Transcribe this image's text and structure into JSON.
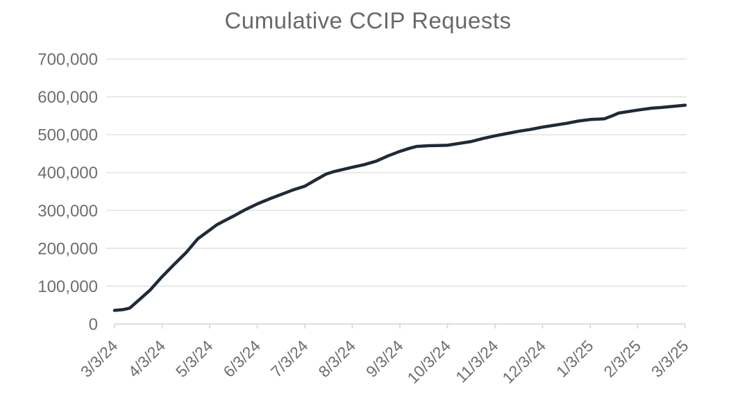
{
  "page": {
    "background": "#ffffff"
  },
  "chart_data": {
    "type": "line",
    "title": "Cumulative CCIP Requests",
    "xlabel": "",
    "ylabel": "",
    "ylim": [
      0,
      700000
    ],
    "grid": "horizontal",
    "legend": "none",
    "x_tick_labels": [
      "3/3/24",
      "4/3/24",
      "5/3/24",
      "6/3/24",
      "7/3/24",
      "8/3/24",
      "9/3/24",
      "10/3/24",
      "11/3/24",
      "12/3/24",
      "1/3/25",
      "2/3/25",
      "3/3/25"
    ],
    "y_tick_values": [
      0,
      100000,
      200000,
      300000,
      400000,
      500000,
      600000,
      700000
    ],
    "y_tick_labels": [
      "0",
      "100,000",
      "200,000",
      "300,000",
      "400,000",
      "500,000",
      "600,000",
      "700,000"
    ],
    "series": [
      {
        "name": "Cumulative CCIP Requests",
        "monthly": [
          {
            "date": "3/3/24",
            "value": 36000
          },
          {
            "date": "4/3/24",
            "value": 125000
          },
          {
            "date": "5/3/24",
            "value": 248000
          },
          {
            "date": "6/3/24",
            "value": 317000
          },
          {
            "date": "7/3/24",
            "value": 364000
          },
          {
            "date": "8/3/24",
            "value": 414000
          },
          {
            "date": "9/3/24",
            "value": 456000
          },
          {
            "date": "10/3/24",
            "value": 472000
          },
          {
            "date": "11/3/24",
            "value": 497000
          },
          {
            "date": "12/3/24",
            "value": 520000
          },
          {
            "date": "1/3/25",
            "value": 540000
          },
          {
            "date": "2/3/25",
            "value": 565000
          },
          {
            "date": "3/3/25",
            "value": 578000
          }
        ],
        "shape_points": [
          [
            0,
            36000
          ],
          [
            0.18,
            38000
          ],
          [
            0.32,
            42000
          ],
          [
            0.5,
            62000
          ],
          [
            0.75,
            90000
          ],
          [
            1,
            125000
          ],
          [
            1.25,
            157000
          ],
          [
            1.5,
            188000
          ],
          [
            1.75,
            225000
          ],
          [
            2,
            248000
          ],
          [
            2.15,
            262000
          ],
          [
            2.3,
            272000
          ],
          [
            2.5,
            285000
          ],
          [
            2.75,
            302000
          ],
          [
            3,
            317000
          ],
          [
            3.25,
            330000
          ],
          [
            3.5,
            342000
          ],
          [
            3.75,
            354000
          ],
          [
            4,
            364000
          ],
          [
            4.25,
            382000
          ],
          [
            4.45,
            396000
          ],
          [
            4.6,
            402000
          ],
          [
            4.8,
            408000
          ],
          [
            5,
            414000
          ],
          [
            5.25,
            421000
          ],
          [
            5.5,
            430000
          ],
          [
            5.75,
            444000
          ],
          [
            6,
            456000
          ],
          [
            6.2,
            464000
          ],
          [
            6.35,
            469000
          ],
          [
            6.6,
            471000
          ],
          [
            7,
            472000
          ],
          [
            7.25,
            477000
          ],
          [
            7.5,
            482000
          ],
          [
            7.75,
            490000
          ],
          [
            8,
            497000
          ],
          [
            8.25,
            503000
          ],
          [
            8.5,
            509000
          ],
          [
            8.75,
            514000
          ],
          [
            9,
            520000
          ],
          [
            9.25,
            525000
          ],
          [
            9.5,
            530000
          ],
          [
            9.75,
            536000
          ],
          [
            10,
            540000
          ],
          [
            10.3,
            542000
          ],
          [
            10.45,
            549000
          ],
          [
            10.6,
            557000
          ],
          [
            11,
            565000
          ],
          [
            11.3,
            570000
          ],
          [
            11.5,
            572000
          ],
          [
            11.75,
            575000
          ],
          [
            12,
            578000
          ]
        ]
      }
    ],
    "colors": {
      "line": "#1f2a39",
      "grid": "#e3e3e3",
      "axis": "#d9d9d9",
      "title_text": "#696969",
      "tick_text": "#6e6e6e"
    }
  }
}
